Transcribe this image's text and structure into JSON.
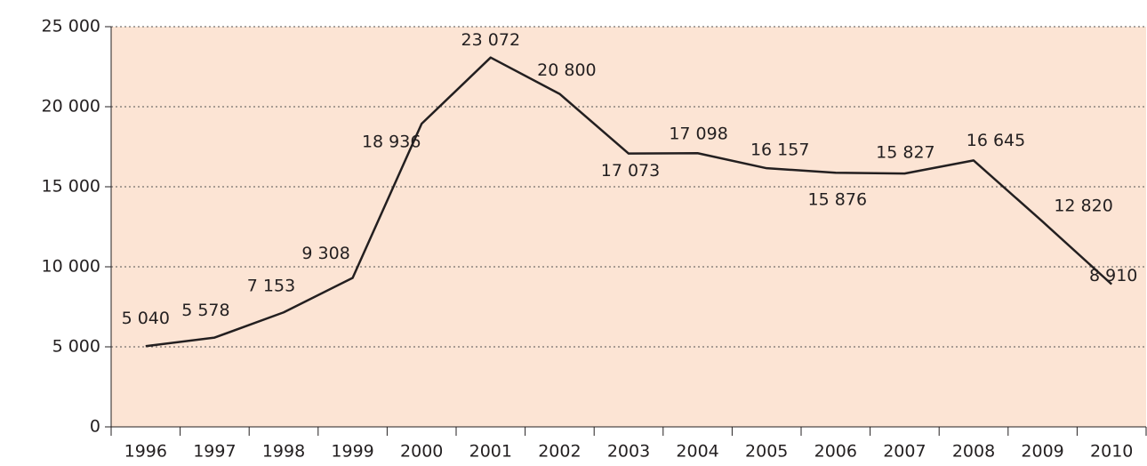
{
  "chart_data": {
    "type": "line",
    "categories": [
      "1996",
      "1997",
      "1998",
      "1999",
      "2000",
      "2001",
      "2002",
      "2003",
      "2004",
      "2005",
      "2006",
      "2007",
      "2008",
      "2009",
      "2010"
    ],
    "series": [
      {
        "color": "#231f20",
        "values": [
          5040,
          5578,
          7153,
          9308,
          18936,
          23072,
          20800,
          17073,
          17098,
          16157,
          15876,
          15827,
          16645,
          12820,
          8910
        ],
        "value_labels": [
          "5 040",
          "5 578",
          "7 153",
          "9 308",
          "18 936",
          "23 072",
          "20 800",
          "17 073",
          "17 098",
          "16 157",
          "15 876",
          "15 827",
          "16 645",
          "12 820",
          "8 910"
        ]
      }
    ],
    "ylim": [
      0,
      25000
    ],
    "yticks": [
      0,
      {
        "value": 5000,
        "label": "5 000"
      },
      {
        "value": 10000,
        "label": "10 000"
      },
      {
        "value": 15000,
        "label": "15 000"
      },
      {
        "value": 20000,
        "label": "20 000"
      },
      {
        "value": 25000,
        "label": "25 000"
      }
    ],
    "grid": true,
    "background": "#fce4d4"
  }
}
